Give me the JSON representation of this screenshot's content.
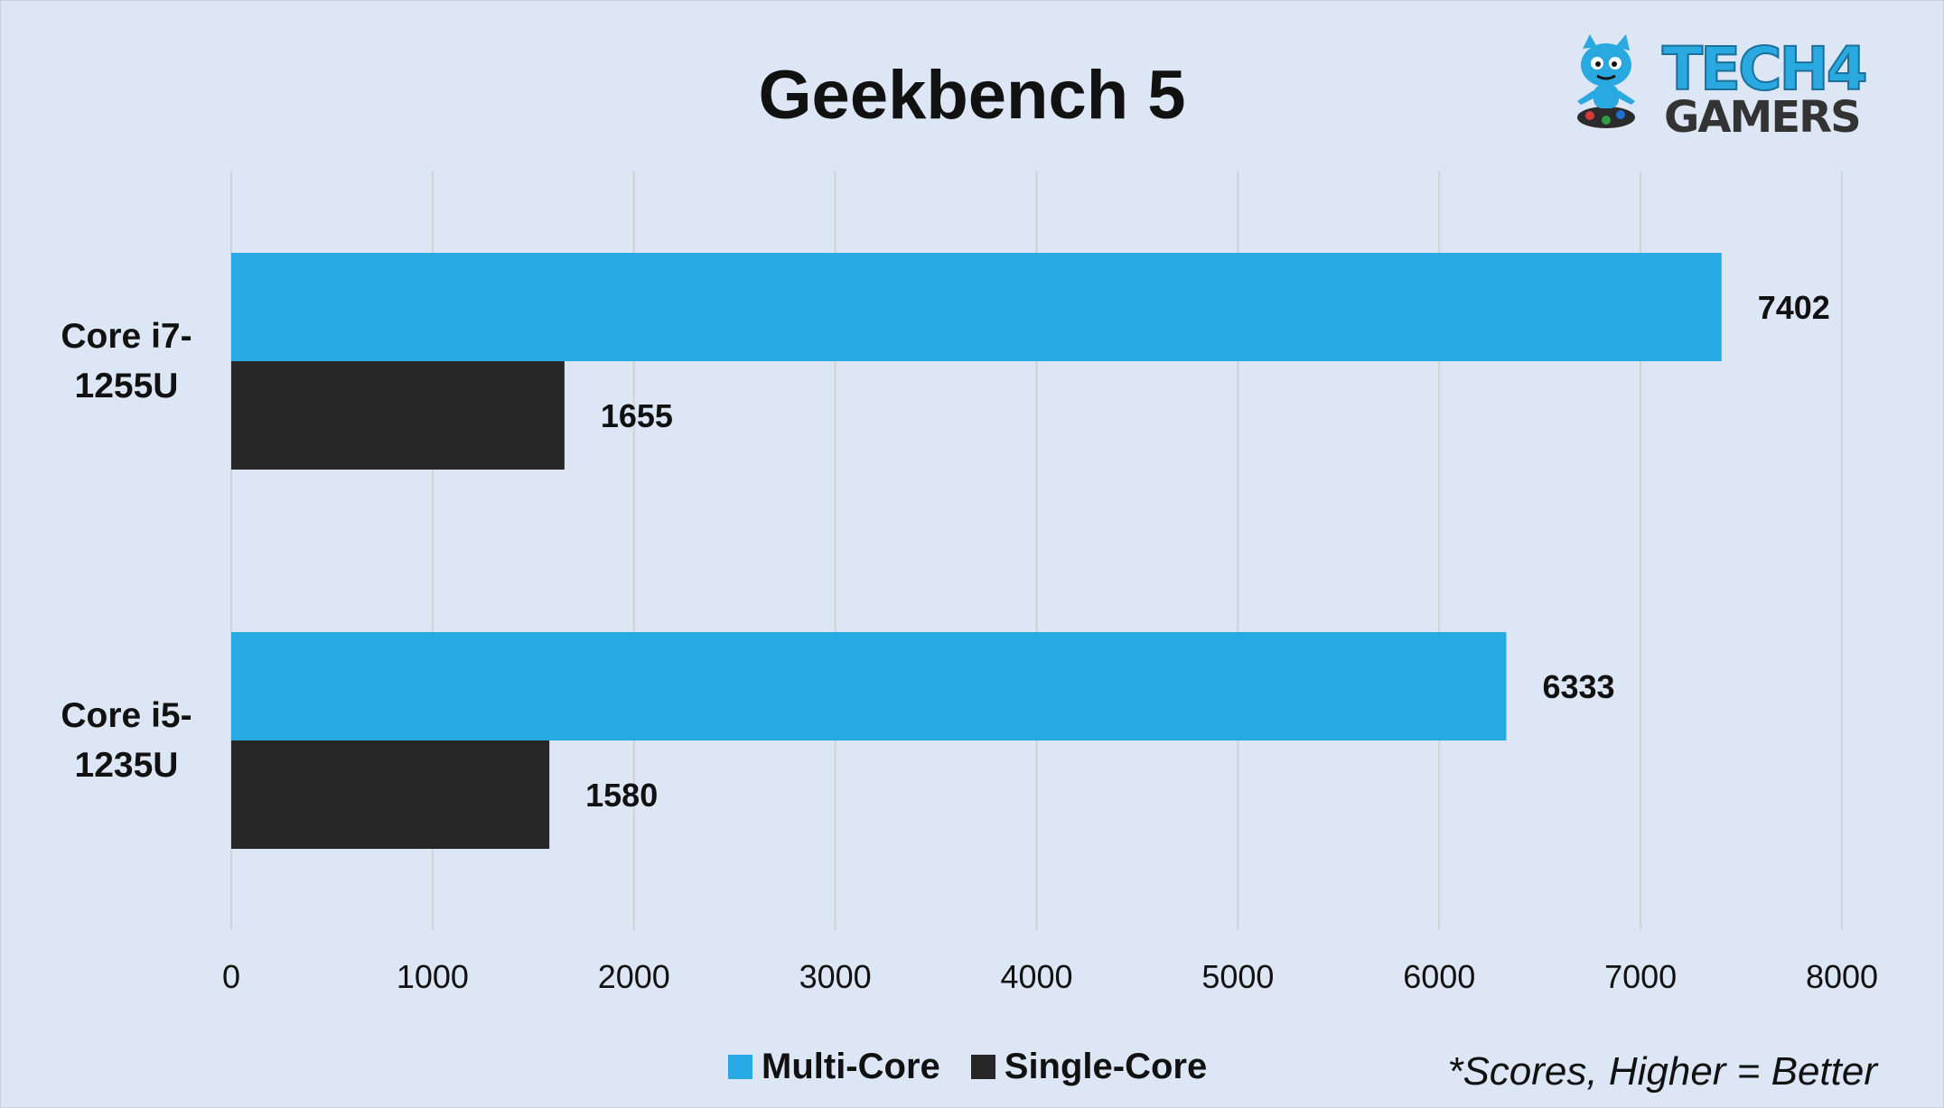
{
  "chart_data": {
    "type": "bar",
    "orientation": "horizontal",
    "title": "Geekbench 5",
    "categories": [
      [
        "Core i7-",
        "1255U"
      ],
      [
        "Core i5-",
        "1235U"
      ]
    ],
    "series": [
      {
        "name": "Multi-Core",
        "color": "#27aae1",
        "values": [
          7402,
          6333
        ]
      },
      {
        "name": "Single-Core",
        "color": "#262626",
        "values": [
          1655,
          1580
        ]
      }
    ],
    "xlim": [
      0,
      8000
    ],
    "xticks": [
      "0",
      "1000",
      "2000",
      "3000",
      "4000",
      "5000",
      "6000",
      "7000",
      "8000"
    ],
    "grid": true,
    "legend_position": "bottom",
    "footnote": "*Scores, Higher = Better"
  },
  "logo": {
    "line1": "TECH",
    "digit": "4",
    "line2": "GAMERS",
    "color_primary": "#29a9e0",
    "color_secondary": "#333333"
  },
  "colors": {
    "background": "#dce6f4",
    "gridline": "#d2d2d2",
    "text": "#111111"
  }
}
